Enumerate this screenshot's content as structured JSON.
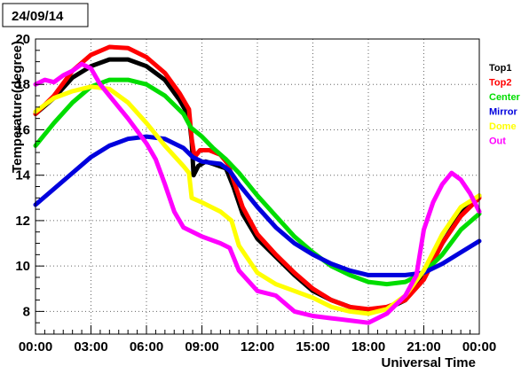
{
  "chart_data": {
    "type": "line",
    "title": "24/09/14",
    "xlabel": "Universal Time",
    "ylabel": "Temperature(degree)",
    "xlim": [
      0,
      24
    ],
    "ylim": [
      7,
      20
    ],
    "x_ticks": [
      "00:00",
      "03:00",
      "06:00",
      "09:00",
      "12:00",
      "15:00",
      "18:00",
      "21:00",
      "00:00"
    ],
    "y_ticks": [
      "8",
      "10",
      "12",
      "14",
      "16",
      "18",
      "20"
    ],
    "grid": true,
    "legend_placement": "right",
    "series": [
      {
        "name": "Top1",
        "color": "#000000",
        "points": [
          [
            0,
            16.7
          ],
          [
            1,
            17.4
          ],
          [
            2,
            18.3
          ],
          [
            3,
            18.8
          ],
          [
            4,
            19.1
          ],
          [
            5,
            19.1
          ],
          [
            6,
            18.8
          ],
          [
            7,
            18.2
          ],
          [
            7.8,
            17.3
          ],
          [
            8.3,
            16.6
          ],
          [
            8.45,
            15.5
          ],
          [
            8.55,
            14.0
          ],
          [
            8.8,
            14.4
          ],
          [
            9.2,
            14.6
          ],
          [
            9.6,
            14.5
          ],
          [
            10.3,
            14.3
          ],
          [
            10.7,
            13.5
          ],
          [
            11.2,
            12.3
          ],
          [
            12,
            11.2
          ],
          [
            13,
            10.4
          ],
          [
            14,
            9.6
          ],
          [
            15,
            8.9
          ],
          [
            16,
            8.5
          ],
          [
            17,
            8.2
          ],
          [
            18,
            8.0
          ],
          [
            19,
            8.1
          ],
          [
            20,
            8.5
          ],
          [
            21,
            9.5
          ],
          [
            22,
            11.0
          ],
          [
            23,
            12.3
          ],
          [
            24,
            13.1
          ]
        ]
      },
      {
        "name": "Top2",
        "color": "#ff0000",
        "points": [
          [
            0,
            16.7
          ],
          [
            1,
            17.5
          ],
          [
            2,
            18.6
          ],
          [
            3,
            19.3
          ],
          [
            4,
            19.65
          ],
          [
            5,
            19.6
          ],
          [
            6,
            19.2
          ],
          [
            7,
            18.5
          ],
          [
            7.8,
            17.6
          ],
          [
            8.3,
            16.9
          ],
          [
            8.45,
            15.6
          ],
          [
            8.6,
            14.8
          ],
          [
            8.9,
            15.1
          ],
          [
            9.4,
            15.1
          ],
          [
            10,
            14.9
          ],
          [
            10.4,
            14.5
          ],
          [
            10.7,
            13.8
          ],
          [
            11.2,
            12.6
          ],
          [
            12,
            11.4
          ],
          [
            13,
            10.5
          ],
          [
            14,
            9.7
          ],
          [
            15,
            9.0
          ],
          [
            16,
            8.5
          ],
          [
            17,
            8.2
          ],
          [
            18,
            8.1
          ],
          [
            19,
            8.2
          ],
          [
            20,
            8.5
          ],
          [
            21,
            9.4
          ],
          [
            22,
            11.0
          ],
          [
            23,
            12.2
          ],
          [
            24,
            13.0
          ]
        ]
      },
      {
        "name": "Center",
        "color": "#00dd00",
        "points": [
          [
            0,
            15.3
          ],
          [
            1,
            16.3
          ],
          [
            2,
            17.2
          ],
          [
            3,
            17.9
          ],
          [
            4,
            18.2
          ],
          [
            5,
            18.2
          ],
          [
            6,
            18.0
          ],
          [
            7,
            17.5
          ],
          [
            8,
            16.7
          ],
          [
            8.4,
            16.1
          ],
          [
            9,
            15.7
          ],
          [
            9.6,
            15.2
          ],
          [
            10.3,
            14.7
          ],
          [
            11,
            14.1
          ],
          [
            12,
            13.1
          ],
          [
            13,
            12.2
          ],
          [
            14,
            11.3
          ],
          [
            15,
            10.6
          ],
          [
            16,
            10.0
          ],
          [
            17,
            9.6
          ],
          [
            18,
            9.3
          ],
          [
            19,
            9.2
          ],
          [
            20,
            9.3
          ],
          [
            21,
            9.7
          ],
          [
            22,
            10.5
          ],
          [
            23,
            11.6
          ],
          [
            24,
            12.3
          ]
        ]
      },
      {
        "name": "Mirror",
        "color": "#0000dd",
        "points": [
          [
            0,
            12.7
          ],
          [
            1,
            13.4
          ],
          [
            2,
            14.1
          ],
          [
            3,
            14.8
          ],
          [
            4,
            15.3
          ],
          [
            5,
            15.6
          ],
          [
            6,
            15.7
          ],
          [
            7,
            15.6
          ],
          [
            8,
            15.2
          ],
          [
            8.5,
            14.8
          ],
          [
            9,
            14.6
          ],
          [
            10,
            14.5
          ],
          [
            10.5,
            14.2
          ],
          [
            11,
            13.6
          ],
          [
            12,
            12.6
          ],
          [
            13,
            11.7
          ],
          [
            14,
            11.0
          ],
          [
            15,
            10.5
          ],
          [
            16,
            10.1
          ],
          [
            17,
            9.8
          ],
          [
            18,
            9.6
          ],
          [
            19,
            9.6
          ],
          [
            20,
            9.6
          ],
          [
            21,
            9.7
          ],
          [
            22,
            10.1
          ],
          [
            23,
            10.6
          ],
          [
            24,
            11.1
          ]
        ]
      },
      {
        "name": "Dome",
        "color": "#ffff00",
        "points": [
          [
            0,
            16.8
          ],
          [
            1,
            17.4
          ],
          [
            2,
            17.7
          ],
          [
            3,
            17.9
          ],
          [
            4,
            17.8
          ],
          [
            5,
            17.2
          ],
          [
            6,
            16.3
          ],
          [
            7,
            15.3
          ],
          [
            8,
            14.4
          ],
          [
            8.3,
            14.1
          ],
          [
            8.45,
            13.0
          ],
          [
            9,
            12.8
          ],
          [
            10,
            12.4
          ],
          [
            10.6,
            12.0
          ],
          [
            11,
            10.9
          ],
          [
            12,
            9.7
          ],
          [
            13,
            9.2
          ],
          [
            14,
            8.9
          ],
          [
            15,
            8.6
          ],
          [
            16,
            8.2
          ],
          [
            17,
            8.0
          ],
          [
            18,
            7.9
          ],
          [
            19,
            8.1
          ],
          [
            20,
            8.7
          ],
          [
            21,
            9.8
          ],
          [
            22,
            11.4
          ],
          [
            23,
            12.6
          ],
          [
            24,
            13.1
          ]
        ]
      },
      {
        "name": "Out",
        "color": "#ff00ff",
        "points": [
          [
            0,
            18.0
          ],
          [
            0.5,
            18.2
          ],
          [
            1,
            18.1
          ],
          [
            1.5,
            18.4
          ],
          [
            2,
            18.6
          ],
          [
            2.5,
            18.9
          ],
          [
            3,
            18.7
          ],
          [
            3.5,
            18.0
          ],
          [
            4,
            17.5
          ],
          [
            5,
            16.5
          ],
          [
            6,
            15.4
          ],
          [
            6.5,
            14.7
          ],
          [
            7,
            13.6
          ],
          [
            7.5,
            12.4
          ],
          [
            8,
            11.7
          ],
          [
            9,
            11.3
          ],
          [
            10,
            11.0
          ],
          [
            10.5,
            10.8
          ],
          [
            11,
            9.8
          ],
          [
            12,
            8.9
          ],
          [
            13,
            8.7
          ],
          [
            14,
            8.0
          ],
          [
            15,
            7.8
          ],
          [
            16,
            7.7
          ],
          [
            17,
            7.6
          ],
          [
            18,
            7.5
          ],
          [
            19,
            7.9
          ],
          [
            20,
            8.7
          ],
          [
            20.6,
            9.6
          ],
          [
            21,
            11.6
          ],
          [
            21.5,
            12.8
          ],
          [
            22,
            13.6
          ],
          [
            22.5,
            14.1
          ],
          [
            23,
            13.8
          ],
          [
            23.5,
            13.2
          ],
          [
            24,
            12.4
          ]
        ]
      }
    ]
  }
}
